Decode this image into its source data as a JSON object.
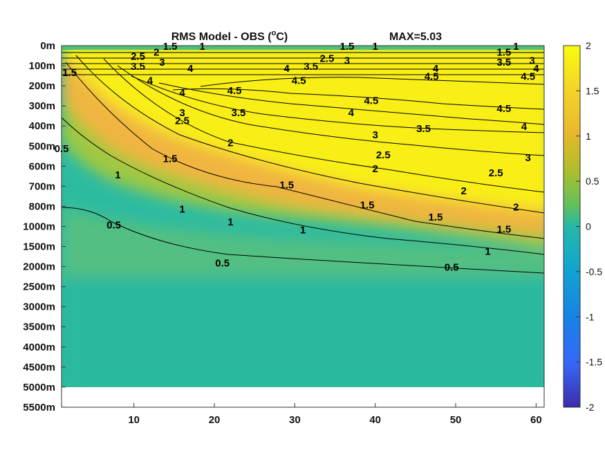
{
  "chart_data": {
    "type": "heatmap",
    "title": "RMS Model - OBS (",
    "title_sup": "o",
    "title_unit": "C)",
    "max_label": "MAX=5.03",
    "xlabel": "",
    "ylabel": "",
    "xlim": [
      1,
      61
    ],
    "x_ticks": [
      "10",
      "20",
      "30",
      "40",
      "50",
      "60"
    ],
    "y_ticks": [
      "0m",
      "100m",
      "200m",
      "300m",
      "400m",
      "500m",
      "600m",
      "700m",
      "800m",
      "1000m",
      "1500m",
      "2000m",
      "2500m",
      "3000m",
      "3500m",
      "4000m",
      "4500m",
      "5000m",
      "5500m"
    ],
    "data_bottom_depth": "5000m",
    "colormap": "parula",
    "clim": [
      -2,
      2
    ],
    "colorbar_ticks": [
      "2",
      "1.5",
      "1",
      "0.5",
      "0",
      "-0.5",
      "-1",
      "-1.5",
      "-2"
    ],
    "contour_levels": [
      0.5,
      1,
      1.5,
      2,
      2.5,
      3,
      3.5,
      4,
      4.5
    ],
    "contour_labels": [
      {
        "text": "1",
        "x": 18.5,
        "y": "0m"
      },
      {
        "text": "1.5",
        "x": 14.5,
        "y": "0m"
      },
      {
        "text": "2.5",
        "x": 10.5,
        "y": "50m"
      },
      {
        "text": "2",
        "x": 12.8,
        "y": "30m"
      },
      {
        "text": "3.5",
        "x": 10.5,
        "y": "100m"
      },
      {
        "text": "3",
        "x": 13.5,
        "y": "80m"
      },
      {
        "text": "4",
        "x": 17,
        "y": "110m"
      },
      {
        "text": "4",
        "x": 12,
        "y": "170m"
      },
      {
        "text": "1.5",
        "x": 36.5,
        "y": "0m"
      },
      {
        "text": "1",
        "x": 40,
        "y": "0m"
      },
      {
        "text": "2.5",
        "x": 34,
        "y": "60m"
      },
      {
        "text": "3",
        "x": 36.5,
        "y": "70m"
      },
      {
        "text": "3.5",
        "x": 32,
        "y": "100m"
      },
      {
        "text": "4",
        "x": 29,
        "y": "110m"
      },
      {
        "text": "4.5",
        "x": 30.5,
        "y": "170m"
      },
      {
        "text": "4",
        "x": 47.5,
        "y": "110m"
      },
      {
        "text": "4.5",
        "x": 47,
        "y": "150m"
      },
      {
        "text": "1",
        "x": 57.5,
        "y": "0m"
      },
      {
        "text": "1.5",
        "x": 56,
        "y": "30m"
      },
      {
        "text": "3.5",
        "x": 56,
        "y": "80m"
      },
      {
        "text": "3",
        "x": 59.5,
        "y": "70m"
      },
      {
        "text": "4",
        "x": 60,
        "y": "110m"
      },
      {
        "text": "4.5",
        "x": 59,
        "y": "150m"
      },
      {
        "text": "1.5",
        "x": 2,
        "y": "130m"
      },
      {
        "text": "0.5",
        "x": 1,
        "y": "510m"
      },
      {
        "text": "4.5",
        "x": 22.5,
        "y": "220m"
      },
      {
        "text": "4.5",
        "x": 39.5,
        "y": "270m"
      },
      {
        "text": "4.5",
        "x": 56,
        "y": "310m"
      },
      {
        "text": "4",
        "x": 16,
        "y": "230m"
      },
      {
        "text": "4",
        "x": 37,
        "y": "330m"
      },
      {
        "text": "4",
        "x": 58.5,
        "y": "400m"
      },
      {
        "text": "3.5",
        "x": 23,
        "y": "330m"
      },
      {
        "text": "3.5",
        "x": 46,
        "y": "410m"
      },
      {
        "text": "3",
        "x": 16,
        "y": "330m"
      },
      {
        "text": "3",
        "x": 40,
        "y": "440m"
      },
      {
        "text": "3",
        "x": 59,
        "y": "555m"
      },
      {
        "text": "2.5",
        "x": 16,
        "y": "370m"
      },
      {
        "text": "2.5",
        "x": 41,
        "y": "540m"
      },
      {
        "text": "2.5",
        "x": 55,
        "y": "630m"
      },
      {
        "text": "2",
        "x": 22,
        "y": "480m"
      },
      {
        "text": "2",
        "x": 40,
        "y": "610m"
      },
      {
        "text": "2",
        "x": 51,
        "y": "720m"
      },
      {
        "text": "2",
        "x": 57.5,
        "y": "800m"
      },
      {
        "text": "1.5",
        "x": 14.5,
        "y": "560m"
      },
      {
        "text": "1.5",
        "x": 29,
        "y": "690m"
      },
      {
        "text": "1.5",
        "x": 39,
        "y": "790m"
      },
      {
        "text": "1.5",
        "x": 47.5,
        "y": "900m"
      },
      {
        "text": "1.5",
        "x": 56,
        "y": "1050m"
      },
      {
        "text": "1",
        "x": 8,
        "y": "640m"
      },
      {
        "text": "1",
        "x": 16,
        "y": "820m"
      },
      {
        "text": "1",
        "x": 22,
        "y": "950m"
      },
      {
        "text": "1",
        "x": 31,
        "y": "1070m"
      },
      {
        "text": "1",
        "x": 54,
        "y": "1600m"
      },
      {
        "text": "0.5",
        "x": 7.5,
        "y": "980m"
      },
      {
        "text": "0.5",
        "x": 21,
        "y": "1900m"
      },
      {
        "text": "0.5",
        "x": 49.5,
        "y": "2000m"
      }
    ]
  }
}
